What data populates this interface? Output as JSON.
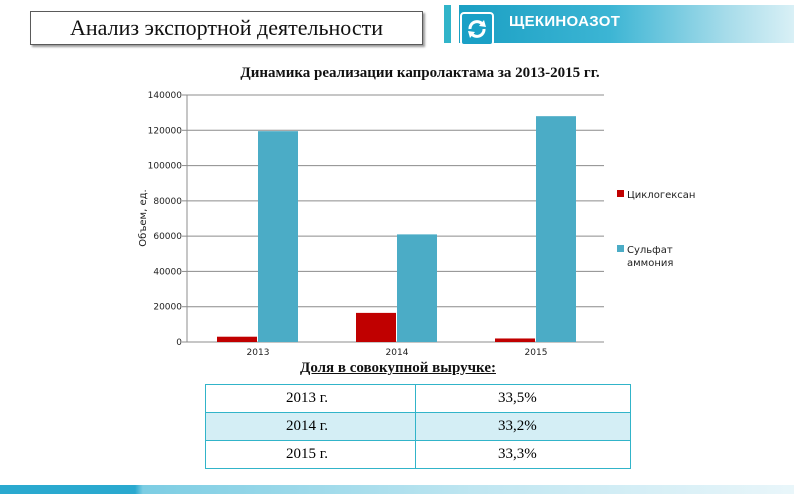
{
  "header": {
    "title": "Анализ экспортной деятельности",
    "brand": "ЩЕКИНОАЗОТ",
    "logo_icon": "recycle-arrows-icon"
  },
  "chart_data": {
    "type": "bar",
    "title": "Динамика реализации капролактама за 2013-2015 гг.",
    "ylabel": "Объем, ед.",
    "xlabel": "",
    "categories": [
      "2013",
      "2014",
      "2015"
    ],
    "yticks": [
      "0",
      "20000",
      "40000",
      "60000",
      "80000",
      "100000",
      "120000",
      "140000"
    ],
    "ylim": [
      0,
      140000
    ],
    "grid": true,
    "legend_position": "right",
    "series": [
      {
        "name": "Циклогексан",
        "color": "#c00000",
        "values": [
          3000,
          16500,
          2000
        ]
      },
      {
        "name": "Сульфат аммония",
        "color": "#4bacc6",
        "values": [
          119500,
          61000,
          128000
        ]
      }
    ]
  },
  "share": {
    "title": "Доля в совокупной выручке:",
    "rows": [
      {
        "year": "2013 г.",
        "value": "33,5%"
      },
      {
        "year": "2014 г.",
        "value": "33,2%"
      },
      {
        "year": "2015 г.",
        "value": "33,3%"
      }
    ]
  },
  "colors": {
    "accent": "#31b4c9",
    "table_alt_row": "#d4eef5"
  }
}
